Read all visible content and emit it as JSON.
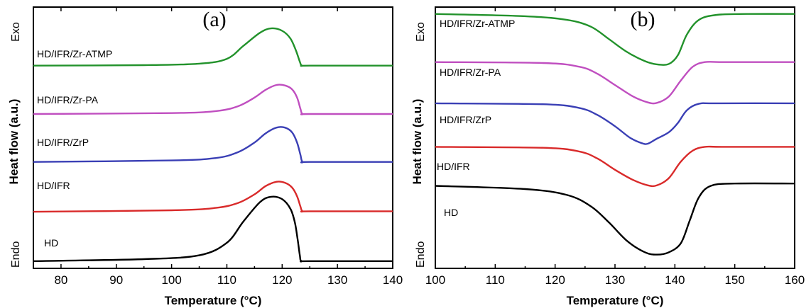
{
  "chart_data": [
    {
      "panel": "(a)",
      "type": "line",
      "xlabel": "Temperature (°C)",
      "ylabel": "Heat flow (a.u.)",
      "exo_label": "Exo",
      "endo_label": "Endo",
      "xlim": [
        75,
        140
      ],
      "xticks": [
        "80",
        "90",
        "100",
        "110",
        "120",
        "130",
        "140"
      ],
      "series": [
        {
          "name": "HD/IFR/Zr-ATMP",
          "color": "#22922b",
          "x": [
            75,
            95,
            105,
            110,
            113,
            116,
            118,
            120,
            121.5,
            122.5,
            123.2,
            123.6,
            125,
            140
          ],
          "y": [
            4.04,
            4.05,
            4.08,
            4.18,
            4.45,
            4.72,
            4.81,
            4.76,
            4.6,
            4.35,
            4.12,
            4.04,
            4.04,
            4.04
          ]
        },
        {
          "name": "HD/IFR/Zr-PA",
          "color": "#c04fc0",
          "x": [
            75,
            100,
            108,
            112,
            115,
            117,
            119,
            120.5,
            121.8,
            122.7,
            123.3,
            123.7,
            125,
            140
          ],
          "y": [
            3.04,
            3.06,
            3.1,
            3.2,
            3.38,
            3.54,
            3.64,
            3.63,
            3.55,
            3.38,
            3.15,
            3.04,
            3.04,
            3.04
          ]
        },
        {
          "name": "HD/IFR/ZrP",
          "color": "#3a3fb5",
          "x": [
            75,
            100,
            108,
            112,
            115,
            117,
            119,
            120.5,
            121.8,
            122.7,
            123.3,
            123.7,
            125,
            140
          ],
          "y": [
            2.05,
            2.08,
            2.13,
            2.25,
            2.45,
            2.64,
            2.76,
            2.76,
            2.66,
            2.45,
            2.2,
            2.05,
            2.05,
            2.05
          ]
        },
        {
          "name": "HD/IFR",
          "color": "#d92a2a",
          "x": [
            75,
            100,
            108,
            112,
            115,
            117,
            119,
            120.5,
            121.8,
            122.7,
            123.3,
            123.7,
            125,
            140
          ],
          "y": [
            1.02,
            1.05,
            1.1,
            1.2,
            1.38,
            1.55,
            1.64,
            1.62,
            1.52,
            1.34,
            1.13,
            1.03,
            1.03,
            1.03
          ]
        },
        {
          "name": "HD",
          "color": "#000000",
          "x": [
            75,
            95,
            105,
            110,
            113,
            116,
            118,
            120,
            121.5,
            122.3,
            122.8,
            123.2,
            123.5,
            125,
            140
          ],
          "y": [
            0.0,
            0.04,
            0.12,
            0.38,
            0.82,
            1.22,
            1.33,
            1.28,
            1.08,
            0.8,
            0.45,
            0.12,
            0.0,
            0.0,
            0.0
          ]
        }
      ]
    },
    {
      "panel": "(b)",
      "type": "line",
      "xlabel": "Temperature (°C)",
      "ylabel": "Heat flow (a.u.)",
      "exo_label": "Exo",
      "endo_label": "Endo",
      "xlim": [
        100,
        160
      ],
      "xticks": [
        "100",
        "110",
        "120",
        "130",
        "140",
        "150",
        "160"
      ],
      "series": [
        {
          "name": "HD/IFR/Zr-ATMP",
          "color": "#22922b",
          "x": [
            100,
            115,
            122,
            126,
            129,
            132,
            135,
            137,
            139,
            140.5,
            142,
            144,
            147,
            152,
            160
          ],
          "y": [
            4.0,
            3.95,
            3.87,
            3.72,
            3.45,
            3.17,
            2.97,
            2.9,
            2.91,
            3.1,
            3.55,
            3.87,
            3.98,
            4.0,
            4.0
          ]
        },
        {
          "name": "HD/IFR/Zr-PA",
          "color": "#c04fc0",
          "x": [
            100,
            118,
            124,
            127,
            130,
            133,
            135.5,
            137,
            139,
            141,
            143,
            145,
            148,
            160
          ],
          "y": [
            2.95,
            2.93,
            2.85,
            2.7,
            2.45,
            2.2,
            2.07,
            2.06,
            2.2,
            2.55,
            2.85,
            2.95,
            2.95,
            2.95
          ]
        },
        {
          "name": "HD/IFR/ZrP",
          "color": "#3a3fb5",
          "x": [
            100,
            118,
            124,
            127,
            130,
            132.5,
            134.5,
            135.5,
            137,
            139,
            140.5,
            142,
            144,
            147,
            160
          ],
          "y": [
            2.05,
            2.03,
            1.95,
            1.8,
            1.55,
            1.3,
            1.18,
            1.17,
            1.28,
            1.42,
            1.62,
            1.9,
            2.04,
            2.05,
            2.05
          ]
        },
        {
          "name": "HD/IFR",
          "color": "#d92a2a",
          "x": [
            100,
            118,
            124,
            127,
            130,
            133,
            135.5,
            137,
            139,
            141,
            143,
            145,
            148,
            160
          ],
          "y": [
            1.1,
            1.08,
            1.0,
            0.85,
            0.6,
            0.38,
            0.26,
            0.26,
            0.42,
            0.78,
            1.02,
            1.1,
            1.1,
            1.1
          ]
        },
        {
          "name": "HD",
          "color": "#000000",
          "x": [
            100,
            115,
            122,
            126,
            129,
            132,
            135,
            137,
            139,
            141,
            142.5,
            144,
            146,
            150,
            160
          ],
          "y": [
            0.25,
            0.18,
            0.05,
            -0.2,
            -0.55,
            -0.95,
            -1.2,
            -1.25,
            -1.2,
            -1.0,
            -0.5,
            0.0,
            0.25,
            0.3,
            0.3
          ]
        }
      ]
    }
  ]
}
